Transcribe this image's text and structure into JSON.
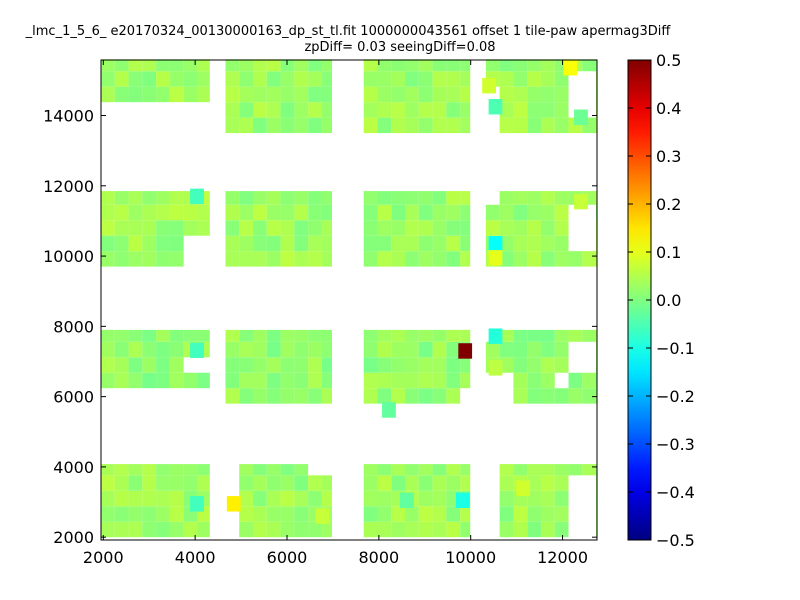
{
  "chart_data": {
    "type": "heatmap",
    "title": "_lmc_1_5_6_ e20170324_00130000163_dp_st_tl.fit 1000000043561 offset 1 tile-paw apermag3Diff",
    "subtitle": "zpDiff= 0.03 seeingDiff=0.08",
    "xlabel": "",
    "ylabel": "",
    "xlim": [
      1950,
      12750
    ],
    "ylim": [
      1920,
      15580
    ],
    "x_ticks": [
      "2000",
      "4000",
      "6000",
      "8000",
      "10000",
      "12000"
    ],
    "x_tick_values": [
      2000,
      4000,
      6000,
      8000,
      10000,
      12000
    ],
    "y_ticks": [
      "2000",
      "4000",
      "6000",
      "8000",
      "10000",
      "12000",
      "14000"
    ],
    "y_tick_values": [
      2000,
      4000,
      6000,
      8000,
      10000,
      12000,
      14000
    ],
    "colormap": "jet",
    "color_range": [
      -0.5,
      0.5
    ],
    "colorbar_ticks": [
      "0.5",
      "0.4",
      "0.3",
      "0.2",
      "0.1",
      "0.0",
      "−0.1",
      "−0.2",
      "−0.3",
      "−0.4",
      "−0.5"
    ],
    "colorbar_tick_values": [
      0.5,
      0.4,
      0.3,
      0.2,
      0.1,
      0.0,
      -0.1,
      -0.2,
      -0.3,
      -0.4,
      -0.5
    ],
    "cell_size": [
      300,
      440
    ],
    "row_bands": [
      {
        "y": [
          2000,
          4080
        ],
        "default": 0.03
      },
      {
        "y": [
          5800,
          7900
        ],
        "default": 0.02
      },
      {
        "y": [
          9700,
          11850
        ],
        "default": 0.03
      },
      {
        "y": [
          13500,
          15600
        ],
        "default": 0.03
      }
    ],
    "column_bands": [
      {
        "x": [
          1950,
          4320
        ]
      },
      {
        "x": [
          4660,
          6980
        ]
      },
      {
        "x": [
          7670,
          9990
        ]
      },
      {
        "x": [
          10330,
          12750
        ]
      }
    ],
    "missing_regions": [
      {
        "x": [
          1950,
          4320
        ],
        "y": [
          5800,
          6200
        ]
      },
      {
        "x": [
          4320,
          4660
        ],
        "y": [
          1920,
          15600
        ]
      },
      {
        "x": [
          1950,
          4320
        ],
        "y": [
          13500,
          14200
        ],
        "note": ""
      },
      {
        "x": [
          3880,
          4320
        ],
        "y": [
          9700,
          10500
        ]
      },
      {
        "x": [
          3880,
          4320
        ],
        "y": [
          6700,
          7280
        ]
      },
      {
        "x": [
          4320,
          4320
        ],
        "y": [
          0,
          0
        ]
      },
      {
        "x": [
          4320,
          4680
        ],
        "y": [
          1920,
          15600
        ]
      },
      {
        "x": [
          6920,
          7670
        ],
        "y": [
          1920,
          15600
        ]
      },
      {
        "x": [
          9990,
          10330
        ],
        "y": [
          13500,
          15600
        ]
      },
      {
        "x": [
          9990,
          10330
        ],
        "y": [
          9700,
          10500
        ]
      },
      {
        "x": [
          9990,
          10330
        ],
        "y": [
          5800,
          7900
        ]
      },
      {
        "x": [
          9990,
          10330
        ],
        "y": [
          2000,
          4080
        ]
      },
      {
        "x": [
          12000,
          12750
        ],
        "y": [
          14000,
          15150
        ]
      },
      {
        "x": [
          12000,
          12750
        ],
        "y": [
          10200,
          11350
        ]
      },
      {
        "x": [
          12000,
          12750
        ],
        "y": [
          6900,
          7600
        ]
      },
      {
        "x": [
          12000,
          12750
        ],
        "y": [
          1920,
          3650
        ]
      },
      {
        "x": [
          9820,
          9990
        ],
        "y": [
          5800,
          6200
        ]
      },
      {
        "x": [
          10330,
          10800
        ],
        "y": [
          5200,
          6600
        ]
      },
      {
        "x": [
          11690,
          12000
        ],
        "y": [
          6200,
          6900
        ]
      },
      {
        "x": [
          6600,
          6980
        ],
        "y": [
          3650,
          4080
        ]
      },
      {
        "x": [
          4660,
          5050
        ],
        "y": [
          3650,
          4080
        ]
      },
      {
        "x": [
          4320,
          4990
        ],
        "y": [
          1920,
          2300
        ]
      },
      {
        "x": [
          4660,
          4990
        ],
        "y": [
          2300,
          3650
        ]
      },
      {
        "x": [
          10330,
          10700
        ],
        "y": [
          1920,
          4080
        ]
      },
      {
        "x": [
          10330,
          10700
        ],
        "y": [
          11360,
          11850
        ]
      },
      {
        "x": [
          10330,
          10700
        ],
        "y": [
          13500,
          14750
        ]
      },
      {
        "x": [
          10330,
          10700
        ],
        "y": [
          7400,
          7900
        ]
      }
    ],
    "highlight_cells": [
      {
        "x": 9880,
        "y": 7300,
        "value": 0.5
      },
      {
        "x": 10400,
        "y": 14850,
        "value": 0.08
      },
      {
        "x": 10540,
        "y": 14250,
        "value": -0.05
      },
      {
        "x": 10540,
        "y": 10350,
        "value": -0.12
      },
      {
        "x": 10540,
        "y": 9950,
        "value": 0.1
      },
      {
        "x": 10540,
        "y": 7720,
        "value": -0.09
      },
      {
        "x": 10540,
        "y": 6820,
        "value": 0.06
      },
      {
        "x": 12170,
        "y": 15360,
        "value": 0.12
      },
      {
        "x": 9830,
        "y": 3050,
        "value": -0.1
      },
      {
        "x": 4840,
        "y": 2950,
        "value": 0.14
      },
      {
        "x": 4040,
        "y": 2950,
        "value": -0.06
      },
      {
        "x": 4040,
        "y": 7320,
        "value": -0.06
      },
      {
        "x": 4040,
        "y": 11700,
        "value": -0.06
      },
      {
        "x": 8220,
        "y": 5620,
        "value": -0.03
      },
      {
        "x": 11140,
        "y": 3390,
        "value": 0.08
      },
      {
        "x": 12400,
        "y": 11550,
        "value": 0.07
      },
      {
        "x": 12400,
        "y": 13950,
        "value": -0.02
      },
      {
        "x": 8610,
        "y": 3050,
        "value": -0.03
      },
      {
        "x": 6770,
        "y": 2600,
        "value": 0.07
      }
    ]
  }
}
